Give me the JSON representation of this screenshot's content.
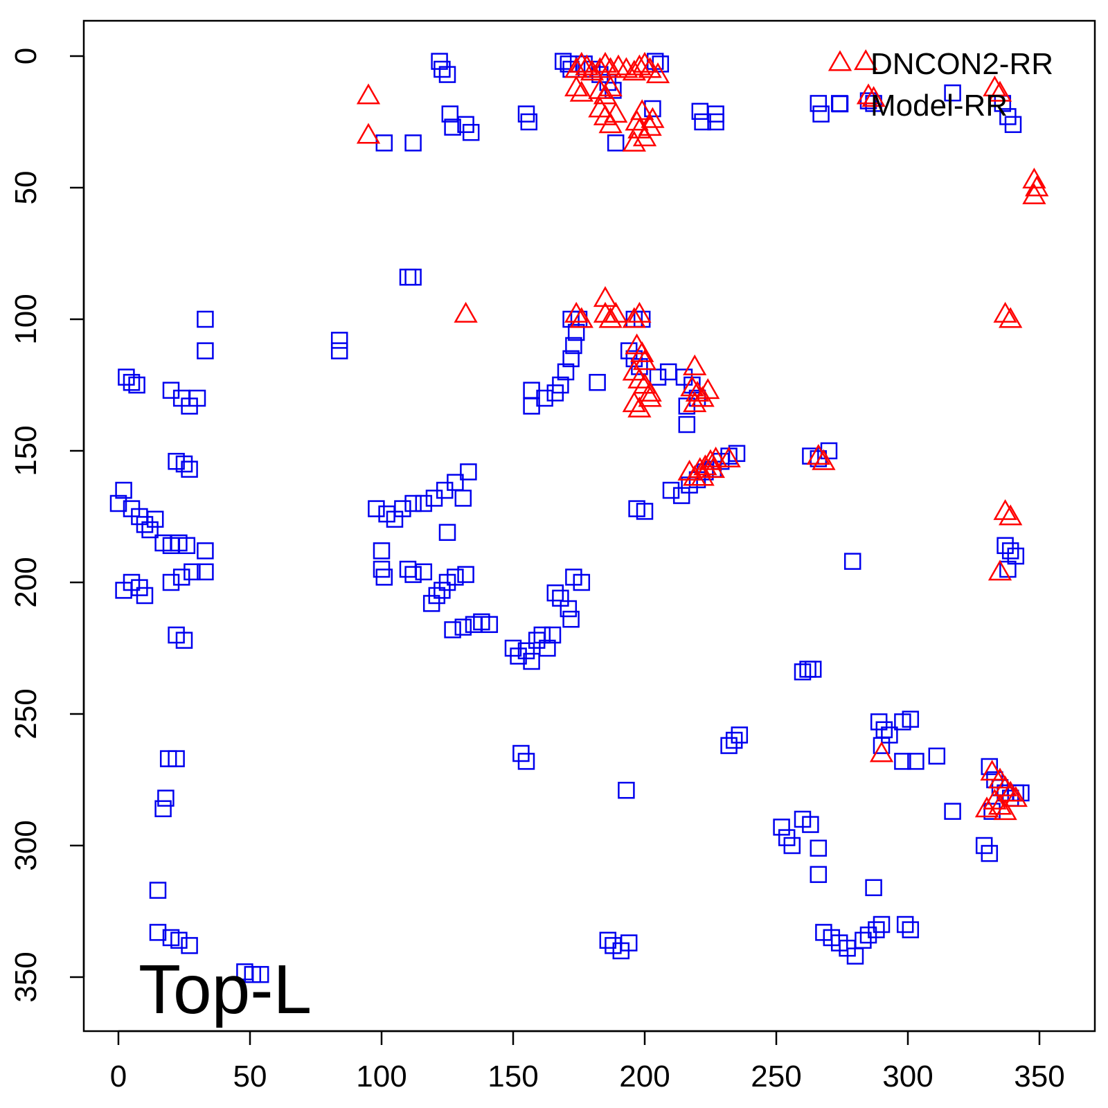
{
  "chart_data": {
    "type": "scatter",
    "title": "",
    "xlabel": "",
    "ylabel": "",
    "xlim": [
      -13,
      372
    ],
    "ylim": [
      -13,
      380
    ],
    "y_reversed": true,
    "xticks": [
      0,
      50,
      100,
      150,
      200,
      250,
      300,
      350
    ],
    "yticks": [
      0,
      50,
      100,
      150,
      200,
      250,
      300,
      350
    ],
    "xtick_labels": [
      "0",
      "50",
      "100",
      "150",
      "200",
      "250",
      "300",
      "350"
    ],
    "ytick_labels": [
      "0",
      "50",
      "100",
      "150",
      "200",
      "250",
      "300",
      "350"
    ],
    "legend_position": "top-right",
    "annotation": "Top-L",
    "series": [
      {
        "name": "DNCON2-RR",
        "marker": "triangle",
        "color": "#ff0000",
        "points": [
          [
            95,
            15
          ],
          [
            95,
            30
          ],
          [
            132,
            98
          ],
          [
            174,
            5
          ],
          [
            176,
            3
          ],
          [
            178,
            4
          ],
          [
            180,
            6
          ],
          [
            183,
            5
          ],
          [
            185,
            3
          ],
          [
            187,
            5
          ],
          [
            190,
            4
          ],
          [
            193,
            5
          ],
          [
            196,
            6
          ],
          [
            198,
            4
          ],
          [
            200,
            3
          ],
          [
            202,
            5
          ],
          [
            205,
            7
          ],
          [
            174,
            12
          ],
          [
            176,
            14
          ],
          [
            183,
            13
          ],
          [
            185,
            15
          ],
          [
            187,
            12
          ],
          [
            183,
            20
          ],
          [
            185,
            23
          ],
          [
            187,
            26
          ],
          [
            189,
            22
          ],
          [
            197,
            25
          ],
          [
            198,
            28
          ],
          [
            200,
            31
          ],
          [
            202,
            27
          ],
          [
            196,
            33
          ],
          [
            199,
            21
          ],
          [
            203,
            24
          ],
          [
            174,
            98
          ],
          [
            176,
            100
          ],
          [
            185,
            92
          ],
          [
            185,
            98
          ],
          [
            187,
            100
          ],
          [
            189,
            98
          ],
          [
            196,
            100
          ],
          [
            198,
            98
          ],
          [
            197,
            110
          ],
          [
            199,
            113
          ],
          [
            200,
            116
          ],
          [
            196,
            120
          ],
          [
            198,
            123
          ],
          [
            200,
            125
          ],
          [
            202,
            128
          ],
          [
            196,
            132
          ],
          [
            198,
            134
          ],
          [
            202,
            130
          ],
          [
            219,
            118
          ],
          [
            218,
            126
          ],
          [
            220,
            128
          ],
          [
            222,
            130
          ],
          [
            224,
            127
          ],
          [
            219,
            132
          ],
          [
            217,
            158
          ],
          [
            219,
            160
          ],
          [
            221,
            157
          ],
          [
            223,
            156
          ],
          [
            225,
            154
          ],
          [
            227,
            153
          ],
          [
            222,
            160
          ],
          [
            226,
            157
          ],
          [
            232,
            153
          ],
          [
            266,
            152
          ],
          [
            268,
            154
          ],
          [
            284,
            2
          ],
          [
            285,
            15
          ],
          [
            287,
            16
          ],
          [
            290,
            265
          ],
          [
            337,
            98
          ],
          [
            339,
            100
          ],
          [
            337,
            173
          ],
          [
            339,
            175
          ],
          [
            335,
            196
          ],
          [
            333,
            12
          ],
          [
            335,
            14
          ],
          [
            348,
            47
          ],
          [
            349,
            50
          ],
          [
            348,
            53
          ],
          [
            332,
            272
          ],
          [
            335,
            275
          ],
          [
            337,
            278
          ],
          [
            339,
            280
          ],
          [
            341,
            282
          ],
          [
            333,
            283
          ],
          [
            335,
            285
          ],
          [
            337,
            287
          ],
          [
            330,
            286
          ]
        ]
      },
      {
        "name": "Model-RR",
        "marker": "square",
        "color": "#0000ee",
        "points": [
          [
            122,
            2
          ],
          [
            123,
            5
          ],
          [
            125,
            7
          ],
          [
            126,
            22
          ],
          [
            127,
            27
          ],
          [
            132,
            26
          ],
          [
            134,
            29
          ],
          [
            101,
            33
          ],
          [
            112,
            33
          ],
          [
            155,
            22
          ],
          [
            156,
            25
          ],
          [
            169,
            2
          ],
          [
            171,
            3
          ],
          [
            172,
            5
          ],
          [
            177,
            3
          ],
          [
            180,
            5
          ],
          [
            183,
            7
          ],
          [
            186,
            10
          ],
          [
            188,
            13
          ],
          [
            204,
            2
          ],
          [
            206,
            3
          ],
          [
            203,
            20
          ],
          [
            189,
            33
          ],
          [
            221,
            21
          ],
          [
            222,
            25
          ],
          [
            227,
            22
          ],
          [
            227,
            25
          ],
          [
            266,
            18
          ],
          [
            267,
            22
          ],
          [
            274,
            18
          ],
          [
            285,
            17
          ],
          [
            287,
            18
          ],
          [
            317,
            14
          ],
          [
            336,
            18
          ],
          [
            338,
            23
          ],
          [
            340,
            26
          ],
          [
            110,
            84
          ],
          [
            112,
            84
          ],
          [
            3,
            122
          ],
          [
            5,
            124
          ],
          [
            7,
            125
          ],
          [
            33,
            100
          ],
          [
            33,
            112
          ],
          [
            84,
            108
          ],
          [
            84,
            112
          ],
          [
            172,
            100
          ],
          [
            175,
            100
          ],
          [
            174,
            105
          ],
          [
            173,
            110
          ],
          [
            172,
            115
          ],
          [
            170,
            120
          ],
          [
            168,
            125
          ],
          [
            166,
            128
          ],
          [
            162,
            130
          ],
          [
            157,
            127
          ],
          [
            157,
            133
          ],
          [
            182,
            124
          ],
          [
            196,
            100
          ],
          [
            199,
            100
          ],
          [
            194,
            112
          ],
          [
            196,
            115
          ],
          [
            198,
            118
          ],
          [
            205,
            122
          ],
          [
            209,
            120
          ],
          [
            215,
            122
          ],
          [
            218,
            125
          ],
          [
            216,
            133
          ],
          [
            216,
            140
          ],
          [
            220,
            130
          ],
          [
            0,
            170
          ],
          [
            2,
            165
          ],
          [
            5,
            172
          ],
          [
            8,
            175
          ],
          [
            10,
            178
          ],
          [
            12,
            180
          ],
          [
            14,
            176
          ],
          [
            17,
            185
          ],
          [
            20,
            186
          ],
          [
            23,
            185
          ],
          [
            26,
            186
          ],
          [
            33,
            188
          ],
          [
            20,
            127
          ],
          [
            24,
            130
          ],
          [
            27,
            133
          ],
          [
            30,
            130
          ],
          [
            22,
            154
          ],
          [
            25,
            155
          ],
          [
            27,
            157
          ],
          [
            2,
            203
          ],
          [
            5,
            200
          ],
          [
            8,
            202
          ],
          [
            10,
            205
          ],
          [
            20,
            200
          ],
          [
            24,
            198
          ],
          [
            28,
            196
          ],
          [
            33,
            196
          ],
          [
            22,
            220
          ],
          [
            25,
            222
          ],
          [
            19,
            267
          ],
          [
            22,
            267
          ],
          [
            18,
            282
          ],
          [
            17,
            286
          ],
          [
            15,
            317
          ],
          [
            15,
            333
          ],
          [
            20,
            335
          ],
          [
            23,
            336
          ],
          [
            27,
            338
          ],
          [
            48,
            348
          ],
          [
            51,
            349
          ],
          [
            54,
            349
          ],
          [
            98,
            172
          ],
          [
            102,
            174
          ],
          [
            105,
            176
          ],
          [
            108,
            172
          ],
          [
            112,
            170
          ],
          [
            116,
            170
          ],
          [
            120,
            168
          ],
          [
            124,
            165
          ],
          [
            128,
            162
          ],
          [
            133,
            158
          ],
          [
            125,
            181
          ],
          [
            131,
            168
          ],
          [
            100,
            188
          ],
          [
            100,
            195
          ],
          [
            101,
            198
          ],
          [
            110,
            195
          ],
          [
            112,
            197
          ],
          [
            116,
            196
          ],
          [
            119,
            208
          ],
          [
            121,
            205
          ],
          [
            123,
            203
          ],
          [
            125,
            200
          ],
          [
            128,
            198
          ],
          [
            132,
            197
          ],
          [
            127,
            218
          ],
          [
            131,
            217
          ],
          [
            135,
            216
          ],
          [
            138,
            215
          ],
          [
            141,
            216
          ],
          [
            150,
            225
          ],
          [
            152,
            228
          ],
          [
            155,
            226
          ],
          [
            157,
            230
          ],
          [
            159,
            222
          ],
          [
            161,
            220
          ],
          [
            163,
            225
          ],
          [
            165,
            220
          ],
          [
            166,
            204
          ],
          [
            168,
            206
          ],
          [
            171,
            210
          ],
          [
            172,
            214
          ],
          [
            173,
            198
          ],
          [
            176,
            200
          ],
          [
            232,
            262
          ],
          [
            234,
            260
          ],
          [
            236,
            258
          ],
          [
            153,
            265
          ],
          [
            155,
            268
          ],
          [
            197,
            172
          ],
          [
            200,
            173
          ],
          [
            210,
            165
          ],
          [
            214,
            167
          ],
          [
            217,
            163
          ],
          [
            220,
            161
          ],
          [
            223,
            158
          ],
          [
            226,
            157
          ],
          [
            229,
            154
          ],
          [
            232,
            152
          ],
          [
            235,
            151
          ],
          [
            263,
            152
          ],
          [
            266,
            153
          ],
          [
            270,
            150
          ],
          [
            279,
            192
          ],
          [
            193,
            279
          ],
          [
            186,
            336
          ],
          [
            188,
            338
          ],
          [
            191,
            340
          ],
          [
            194,
            337
          ],
          [
            260,
            234
          ],
          [
            262,
            233
          ],
          [
            264,
            233
          ],
          [
            289,
            253
          ],
          [
            291,
            256
          ],
          [
            293,
            258
          ],
          [
            290,
            262
          ],
          [
            298,
            253
          ],
          [
            301,
            252
          ],
          [
            303,
            268
          ],
          [
            298,
            268
          ],
          [
            311,
            266
          ],
          [
            317,
            287
          ],
          [
            252,
            293
          ],
          [
            254,
            297
          ],
          [
            256,
            300
          ],
          [
            260,
            290
          ],
          [
            263,
            292
          ],
          [
            266,
            301
          ],
          [
            266,
            311
          ],
          [
            287,
            316
          ],
          [
            268,
            333
          ],
          [
            271,
            335
          ],
          [
            274,
            337
          ],
          [
            277,
            339
          ],
          [
            280,
            342
          ],
          [
            283,
            336
          ],
          [
            285,
            334
          ],
          [
            288,
            332
          ],
          [
            290,
            330
          ],
          [
            299,
            330
          ],
          [
            301,
            332
          ],
          [
            329,
            300
          ],
          [
            331,
            303
          ],
          [
            332,
            287
          ],
          [
            331,
            270
          ],
          [
            333,
            275
          ],
          [
            335,
            278
          ],
          [
            337,
            280
          ],
          [
            339,
            282
          ],
          [
            341,
            280
          ],
          [
            337,
            186
          ],
          [
            339,
            188
          ],
          [
            341,
            190
          ],
          [
            338,
            195
          ],
          [
            343,
            280
          ]
        ]
      }
    ]
  }
}
